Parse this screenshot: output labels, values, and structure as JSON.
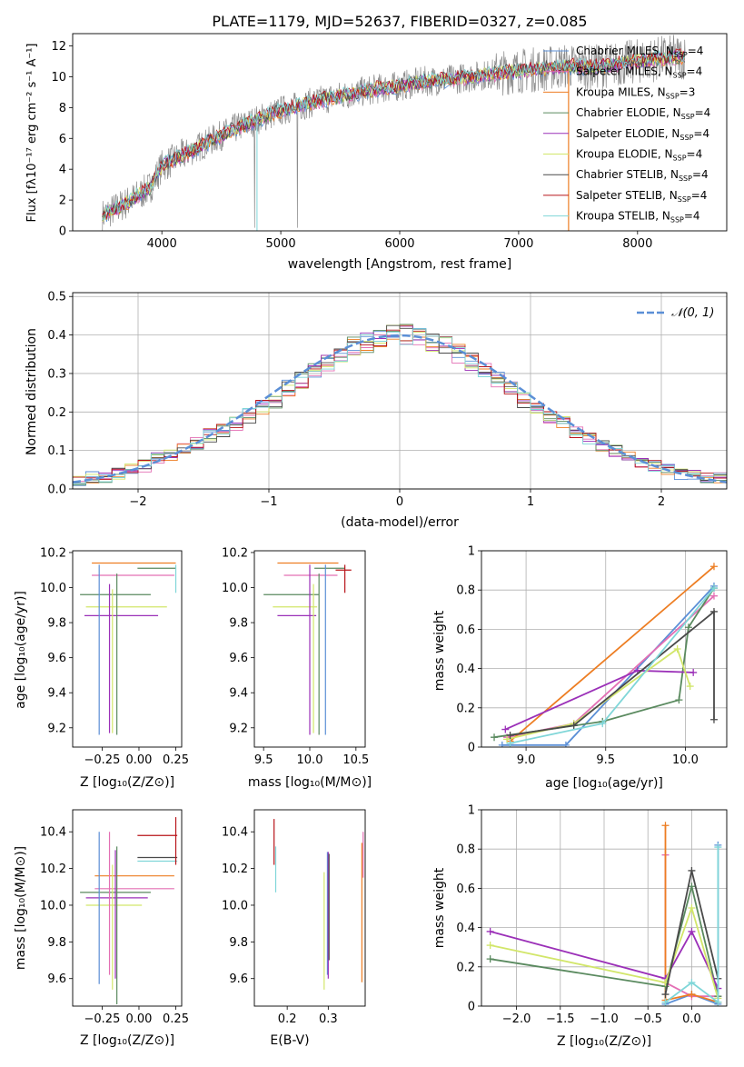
{
  "chart_data": [
    {
      "id": "spectrum",
      "type": "line",
      "title": "PLATE=1179, MJD=52637, FIBERID=0327, z=0.085",
      "xlabel": "wavelength [Angstrom, rest frame]",
      "ylabel": "Flux [fλ10⁻¹⁷ erg cm⁻² s⁻¹ A⁻¹]",
      "xlim": [
        3250,
        8750
      ],
      "ylim": [
        0,
        12.8
      ],
      "xticks": [
        4000,
        5000,
        6000,
        7000,
        8000
      ],
      "yticks": [
        0,
        2,
        4,
        6,
        8,
        10,
        12
      ],
      "grid": false,
      "legend_position": "top-right",
      "continuum": {
        "x": [
          3500,
          3700,
          3900,
          4000,
          4200,
          4400,
          4600,
          4800,
          5000,
          5200,
          5400,
          5600,
          5800,
          6000,
          6200,
          6400,
          6600,
          6800,
          7000,
          7200,
          7400,
          7600,
          7800,
          8000,
          8200,
          8400
        ],
        "y": [
          1.0,
          1.8,
          2.8,
          4.2,
          5.0,
          5.8,
          6.6,
          7.2,
          7.8,
          8.2,
          8.6,
          8.9,
          9.2,
          9.4,
          9.7,
          9.8,
          10.0,
          10.2,
          10.4,
          10.5,
          10.7,
          10.6,
          10.8,
          11.0,
          11.2,
          11.3
        ]
      },
      "legend": [
        {
          "label": "Chabrier MILES, N",
          "sub": "SSP",
          "value": "=4",
          "color": "#5b8fd6"
        },
        {
          "label": "Salpeter MILES, N",
          "sub": "SSP",
          "value": "=4",
          "color": "#e36fb4"
        },
        {
          "label": "Kroupa MILES, N",
          "sub": "SSP",
          "value": "=3",
          "color": "#ed7d22"
        },
        {
          "label": "Chabrier ELODIE, N",
          "sub": "SSP",
          "value": "=4",
          "color": "#5a8a5f"
        },
        {
          "label": "Salpeter ELODIE, N",
          "sub": "SSP",
          "value": "=4",
          "color": "#9b30b8"
        },
        {
          "label": "Kroupa ELODIE, N",
          "sub": "SSP",
          "value": "=4",
          "color": "#d2e66a"
        },
        {
          "label": "Chabrier STELIB, N",
          "sub": "SSP",
          "value": "=4",
          "color": "#4a4a4a"
        },
        {
          "label": "Salpeter STELIB, N",
          "sub": "SSP",
          "value": "=4",
          "color": "#b8141a"
        },
        {
          "label": "Kroupa STELIB, N",
          "sub": "SSP",
          "value": "=4",
          "color": "#7fd6d8"
        }
      ],
      "data_color": "#8c8c8c"
    },
    {
      "id": "residuals",
      "type": "area",
      "xlabel": "(data-model)/error",
      "ylabel": "Normed distribution",
      "xlim": [
        -2.5,
        2.5
      ],
      "ylim": [
        0,
        0.51
      ],
      "xticks": [
        -2,
        -1,
        0,
        1,
        2
      ],
      "xtick_labels": [
        "−2",
        "−1",
        "0",
        "1",
        "2"
      ],
      "yticks": [
        0.0,
        0.1,
        0.2,
        0.3,
        0.4,
        0.5
      ],
      "grid": true,
      "legend": [
        {
          "label": "𝒩(0, 1)",
          "color": "#5b8fd6"
        }
      ],
      "legend_position": "top-right",
      "bin_width": 0.1,
      "bin_start": -2.5,
      "mean_hist": [
        0.02,
        0.03,
        0.03,
        0.04,
        0.05,
        0.06,
        0.08,
        0.09,
        0.11,
        0.12,
        0.14,
        0.15,
        0.17,
        0.19,
        0.21,
        0.23,
        0.26,
        0.28,
        0.31,
        0.33,
        0.35,
        0.37,
        0.38,
        0.39,
        0.4,
        0.4,
        0.39,
        0.38,
        0.37,
        0.35,
        0.33,
        0.31,
        0.28,
        0.26,
        0.23,
        0.21,
        0.19,
        0.17,
        0.15,
        0.13,
        0.11,
        0.1,
        0.08,
        0.07,
        0.06,
        0.05,
        0.04,
        0.04,
        0.03,
        0.03
      ],
      "series_colors": [
        "#5b8fd6",
        "#e36fb4",
        "#ed7d22",
        "#5a8a5f",
        "#9b30b8",
        "#d2e66a",
        "#4a4a4a",
        "#b8141a",
        "#7fd6d8"
      ]
    },
    {
      "id": "age-vs-z",
      "type": "scatter",
      "xlabel": "Z [log₁₀(Z/Z⊙)]",
      "ylabel": "age  [log₁₀(age/yr)]",
      "xlim": [
        -0.45,
        0.29
      ],
      "ylim": [
        9.09,
        10.21
      ],
      "xticks": [
        -0.25,
        0.0,
        0.25
      ],
      "xtick_labels": [
        "−0.25",
        "0.00",
        "0.25"
      ],
      "yticks": [
        9.2,
        9.4,
        9.6,
        9.8,
        10.0,
        10.2
      ],
      "ytick_labels": [
        "9.2",
        "9.4",
        "9.6",
        "9.8",
        "10.0",
        "10.2"
      ],
      "hbars": [
        {
          "y": 10.14,
          "x0": -0.32,
          "x1": 0.25,
          "color": "#ed7d22"
        },
        {
          "y": 10.11,
          "x0": -0.01,
          "x1": 0.25,
          "color": "#5a8a5f"
        },
        {
          "y": 10.07,
          "x0": -0.32,
          "x1": 0.24,
          "color": "#e36fb4"
        },
        {
          "y": 9.96,
          "x0": -0.4,
          "x1": 0.08,
          "color": "#5a8a5f"
        },
        {
          "y": 9.89,
          "x0": -0.36,
          "x1": 0.19,
          "color": "#d2e66a"
        },
        {
          "y": 9.84,
          "x0": -0.37,
          "x1": 0.13,
          "color": "#9b30b8"
        }
      ],
      "vbars": [
        {
          "x": -0.27,
          "y0": 9.16,
          "y1": 10.13,
          "color": "#5b8fd6"
        },
        {
          "x": -0.2,
          "y0": 9.17,
          "y1": 10.02,
          "color": "#9b30b8"
        },
        {
          "x": -0.18,
          "y0": 9.17,
          "y1": 9.99,
          "color": "#d2e66a"
        },
        {
          "x": -0.15,
          "y0": 9.16,
          "y1": 10.08,
          "color": "#5a8a5f"
        },
        {
          "x": 0.25,
          "y0": 9.97,
          "y1": 10.13,
          "color": "#7fd6d8"
        }
      ]
    },
    {
      "id": "age-vs-mass",
      "type": "scatter",
      "xlabel": "mass [log₁₀(M/M⊙)]",
      "xlim": [
        9.4,
        10.6
      ],
      "ylim": [
        9.09,
        10.21
      ],
      "xticks": [
        9.5,
        10.0,
        10.5
      ],
      "xtick_labels": [
        "9.5",
        "10.0",
        "10.5"
      ],
      "yticks": [
        9.2,
        9.4,
        9.6,
        9.8,
        10.0,
        10.2
      ],
      "ytick_labels": [
        "9.2",
        "9.4",
        "9.6",
        "9.8",
        "10.0",
        "10.2"
      ],
      "hbars": [
        {
          "y": 10.14,
          "x0": 9.65,
          "x1": 10.31,
          "color": "#ed7d22"
        },
        {
          "y": 10.11,
          "x0": 10.05,
          "x1": 10.38,
          "color": "#5a8a5f"
        },
        {
          "y": 10.1,
          "x0": 10.28,
          "x1": 10.45,
          "color": "#b8141a"
        },
        {
          "y": 10.07,
          "x0": 9.72,
          "x1": 10.3,
          "color": "#e36fb4"
        },
        {
          "y": 9.96,
          "x0": 9.5,
          "x1": 10.1,
          "color": "#5a8a5f"
        },
        {
          "y": 9.89,
          "x0": 9.6,
          "x1": 10.08,
          "color": "#d2e66a"
        },
        {
          "y": 9.84,
          "x0": 9.65,
          "x1": 10.07,
          "color": "#9b30b8"
        }
      ],
      "vbars": [
        {
          "x": 10.0,
          "y0": 9.16,
          "y1": 10.13,
          "color": "#9b30b8"
        },
        {
          "x": 10.04,
          "y0": 9.17,
          "y1": 10.02,
          "color": "#d2e66a"
        },
        {
          "x": 10.1,
          "y0": 9.16,
          "y1": 10.08,
          "color": "#5a8a5f"
        },
        {
          "x": 10.17,
          "y0": 9.16,
          "y1": 10.13,
          "color": "#5b8fd6"
        },
        {
          "x": 10.38,
          "y0": 9.97,
          "y1": 10.13,
          "color": "#b8141a"
        }
      ]
    },
    {
      "id": "weight-vs-age",
      "type": "line",
      "xlabel": "age  [log₁₀(age/yr)]",
      "ylabel": "mass weight",
      "xlim": [
        8.72,
        10.26
      ],
      "ylim": [
        0.0,
        1.0
      ],
      "xticks": [
        9.0,
        9.5,
        10.0
      ],
      "xtick_labels": [
        "9.0",
        "9.5",
        "10.0"
      ],
      "yticks": [
        0.0,
        0.2,
        0.4,
        0.6,
        0.8,
        1.0
      ],
      "grid": true,
      "series": [
        {
          "color": "#5b8fd6",
          "x": [
            8.85,
            9.25,
            10.18
          ],
          "y": [
            0.01,
            0.01,
            0.82
          ]
        },
        {
          "color": "#e36fb4",
          "x": [
            8.88,
            9.3,
            10.18
          ],
          "y": [
            0.05,
            0.12,
            0.77
          ]
        },
        {
          "color": "#ed7d22",
          "x": [
            8.9,
            10.18
          ],
          "y": [
            0.03,
            0.92
          ]
        },
        {
          "color": "#5a8a5f",
          "x": [
            8.8,
            9.48,
            9.96,
            10.02,
            10.18
          ],
          "y": [
            0.05,
            0.13,
            0.24,
            0.61,
            0.81
          ]
        },
        {
          "color": "#9b30b8",
          "x": [
            8.87,
            9.7,
            10.05
          ],
          "y": [
            0.09,
            0.39,
            0.38
          ]
        },
        {
          "color": "#d2e66a",
          "x": [
            8.88,
            9.3,
            9.95,
            10.03
          ],
          "y": [
            0.04,
            0.12,
            0.5,
            0.31
          ]
        },
        {
          "color": "#4a4a4a",
          "x": [
            8.9,
            9.3,
            10.18,
            10.18
          ],
          "y": [
            0.06,
            0.11,
            0.69,
            0.14
          ]
        },
        {
          "color": "#7fd6d8",
          "x": [
            8.9,
            9.48,
            10.18
          ],
          "y": [
            0.02,
            0.12,
            0.81
          ]
        }
      ]
    },
    {
      "id": "mass-vs-z",
      "type": "scatter",
      "xlabel": "Z [log₁₀(Z/Z⊙)]",
      "ylabel": "mass [log₁₀(M/M⊙)]",
      "xlim": [
        -0.45,
        0.29
      ],
      "ylim": [
        9.45,
        10.52
      ],
      "xticks": [
        -0.25,
        0.0,
        0.25
      ],
      "xtick_labels": [
        "−0.25",
        "0.00",
        "0.25"
      ],
      "yticks": [
        9.6,
        9.8,
        10.0,
        10.2,
        10.4
      ],
      "ytick_labels": [
        "9.6",
        "9.8",
        "10.0",
        "10.2",
        "10.4"
      ],
      "hbars": [
        {
          "y": 10.38,
          "x0": -0.01,
          "x1": 0.26,
          "color": "#b8141a"
        },
        {
          "y": 10.26,
          "x0": -0.01,
          "x1": 0.26,
          "color": "#4a4a4a"
        },
        {
          "y": 10.24,
          "x0": -0.01,
          "x1": 0.26,
          "color": "#7fd6d8"
        },
        {
          "y": 10.16,
          "x0": -0.3,
          "x1": 0.24,
          "color": "#ed7d22"
        },
        {
          "y": 10.09,
          "x0": -0.3,
          "x1": 0.24,
          "color": "#e36fb4"
        },
        {
          "y": 10.07,
          "x0": -0.4,
          "x1": 0.08,
          "color": "#5a8a5f"
        },
        {
          "y": 10.04,
          "x0": -0.36,
          "x1": 0.06,
          "color": "#9b30b8"
        },
        {
          "y": 10.0,
          "x0": -0.36,
          "x1": 0.02,
          "color": "#d2e66a"
        }
      ],
      "vbars": [
        {
          "x": -0.27,
          "y0": 9.57,
          "y1": 10.4,
          "color": "#5b8fd6"
        },
        {
          "x": -0.2,
          "y0": 9.62,
          "y1": 10.4,
          "color": "#e36fb4"
        },
        {
          "x": -0.18,
          "y0": 9.54,
          "y1": 10.22,
          "color": "#d2e66a"
        },
        {
          "x": -0.16,
          "y0": 9.6,
          "y1": 10.3,
          "color": "#9b30b8"
        },
        {
          "x": -0.15,
          "y0": 9.46,
          "y1": 10.32,
          "color": "#5a8a5f"
        },
        {
          "x": 0.25,
          "y0": 10.22,
          "y1": 10.48,
          "color": "#b8141a"
        }
      ]
    },
    {
      "id": "mass-vs-ebv",
      "type": "scatter",
      "xlabel": "E(B-V)",
      "xlim": [
        0.12,
        0.39
      ],
      "ylim": [
        9.45,
        10.52
      ],
      "xticks": [
        0.2,
        0.3
      ],
      "xtick_labels": [
        "0.2",
        "0.3"
      ],
      "yticks": [
        9.6,
        9.8,
        10.0,
        10.2,
        10.4
      ],
      "ytick_labels": [
        "9.6",
        "9.8",
        "10.0",
        "10.2",
        "10.4"
      ],
      "vbars": [
        {
          "x": 0.168,
          "y0": 10.22,
          "y1": 10.47,
          "color": "#b8141a"
        },
        {
          "x": 0.172,
          "y0": 10.07,
          "y1": 10.32,
          "color": "#7fd6d8"
        },
        {
          "x": 0.29,
          "y0": 9.54,
          "y1": 10.18,
          "color": "#d2e66a"
        },
        {
          "x": 0.298,
          "y0": 9.62,
          "y1": 10.29,
          "color": "#5b8fd6"
        },
        {
          "x": 0.3,
          "y0": 9.6,
          "y1": 10.29,
          "color": "#9b30b8"
        },
        {
          "x": 0.302,
          "y0": 9.7,
          "y1": 10.28,
          "color": "#4a4a4a"
        },
        {
          "x": 0.382,
          "y0": 9.58,
          "y1": 10.34,
          "color": "#ed7d22"
        },
        {
          "x": 0.385,
          "y0": 10.15,
          "y1": 10.4,
          "color": "#e36fb4"
        }
      ]
    },
    {
      "id": "weight-vs-z",
      "type": "line",
      "xlabel": "Z [log₁₀(Z/Z⊙)]",
      "ylabel": "mass weight",
      "xlim": [
        -2.4,
        0.4
      ],
      "ylim": [
        0.0,
        1.0
      ],
      "xticks": [
        -2.0,
        -1.5,
        -1.0,
        -0.5,
        0.0
      ],
      "xtick_labels": [
        "−2.0",
        "−1.5",
        "−1.0",
        "−0.5",
        "0.0"
      ],
      "yticks": [
        0.0,
        0.2,
        0.4,
        0.6,
        0.8,
        1.0
      ],
      "grid": true,
      "series": [
        {
          "color": "#5b8fd6",
          "x": [
            -0.3,
            0.0,
            0.3,
            0.3
          ],
          "y": [
            0.01,
            0.06,
            0.01,
            0.82
          ]
        },
        {
          "color": "#e36fb4",
          "x": [
            -0.3,
            -0.3,
            0.0,
            0.3
          ],
          "y": [
            0.77,
            0.12,
            0.05,
            0.05
          ]
        },
        {
          "color": "#ed7d22",
          "x": [
            -0.3,
            -0.3,
            0.0,
            0.3
          ],
          "y": [
            0.92,
            0.03,
            0.06,
            0.02
          ]
        },
        {
          "color": "#5a8a5f",
          "x": [
            -2.3,
            -0.3,
            0.0,
            0.3
          ],
          "y": [
            0.24,
            0.1,
            0.61,
            0.05
          ]
        },
        {
          "color": "#9b30b8",
          "x": [
            -2.3,
            -0.3,
            0.0,
            0.3
          ],
          "y": [
            0.38,
            0.14,
            0.38,
            0.09
          ]
        },
        {
          "color": "#d2e66a",
          "x": [
            -2.3,
            -0.3,
            0.0,
            0.3
          ],
          "y": [
            0.31,
            0.12,
            0.5,
            0.04
          ]
        },
        {
          "color": "#4a4a4a",
          "x": [
            -0.3,
            0.0,
            0.3
          ],
          "y": [
            0.06,
            0.69,
            0.14
          ]
        },
        {
          "color": "#7fd6d8",
          "x": [
            -0.3,
            0.0,
            0.3,
            0.3
          ],
          "y": [
            0.02,
            0.12,
            0.02,
            0.81
          ]
        }
      ]
    }
  ]
}
